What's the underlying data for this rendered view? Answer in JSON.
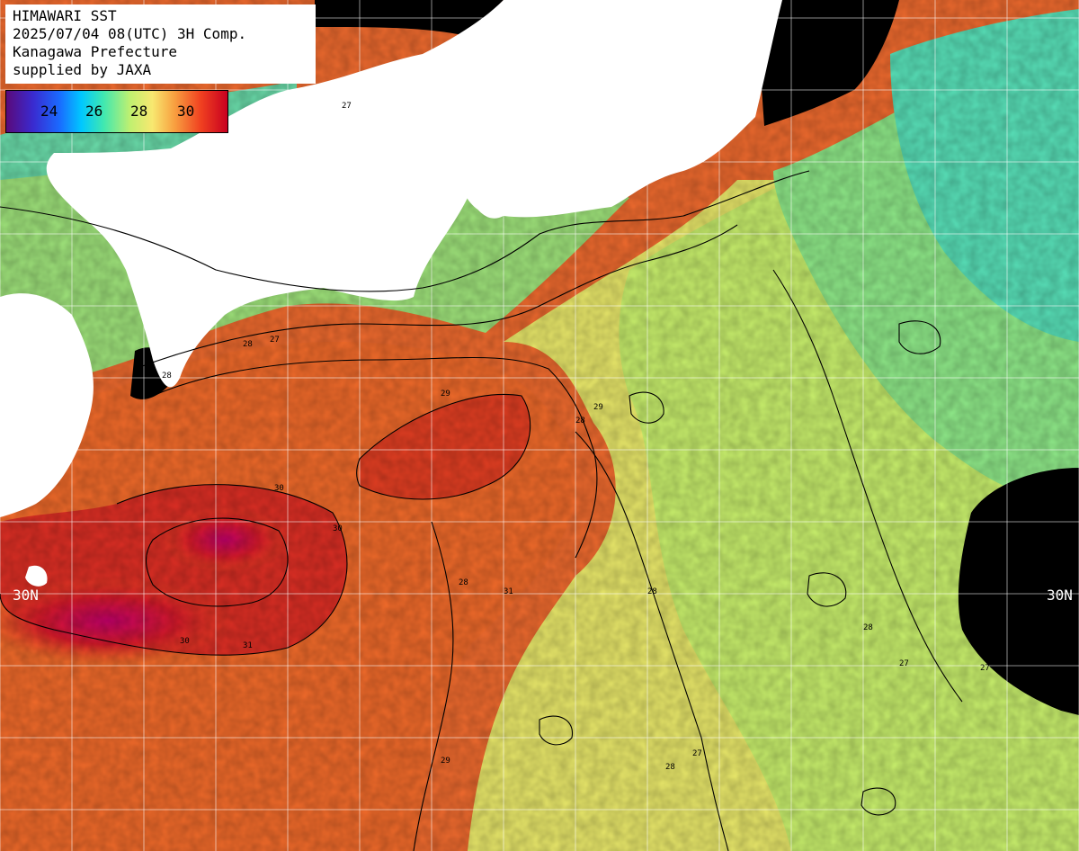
{
  "header": {
    "line1": "HIMAWARI SST",
    "line2": "2025/07/04 08(UTC) 3H Comp.",
    "line3": "Kanagawa Prefecture",
    "line4": "supplied by JAXA"
  },
  "colorbar": {
    "ticks": [
      "24",
      "26",
      "28",
      "30"
    ],
    "stops": [
      "#5a0a7a",
      "#2a2aff",
      "#00c8ff",
      "#40e8c0",
      "#b8f070",
      "#f8f070",
      "#f8a040",
      "#f04020",
      "#c80020"
    ]
  },
  "lat_labels": {
    "left": "30N",
    "right": "30N"
  },
  "contour_labels": [
    "27",
    "27",
    "28",
    "28",
    "28",
    "29",
    "29",
    "30",
    "30",
    "30",
    "31",
    "31",
    "28",
    "28",
    "27",
    "27",
    "29",
    "28",
    "28",
    "27"
  ],
  "colors": {
    "land": "#ffffff",
    "no_data": "#000000",
    "grid": "#ffffff",
    "contour": "#000000"
  }
}
